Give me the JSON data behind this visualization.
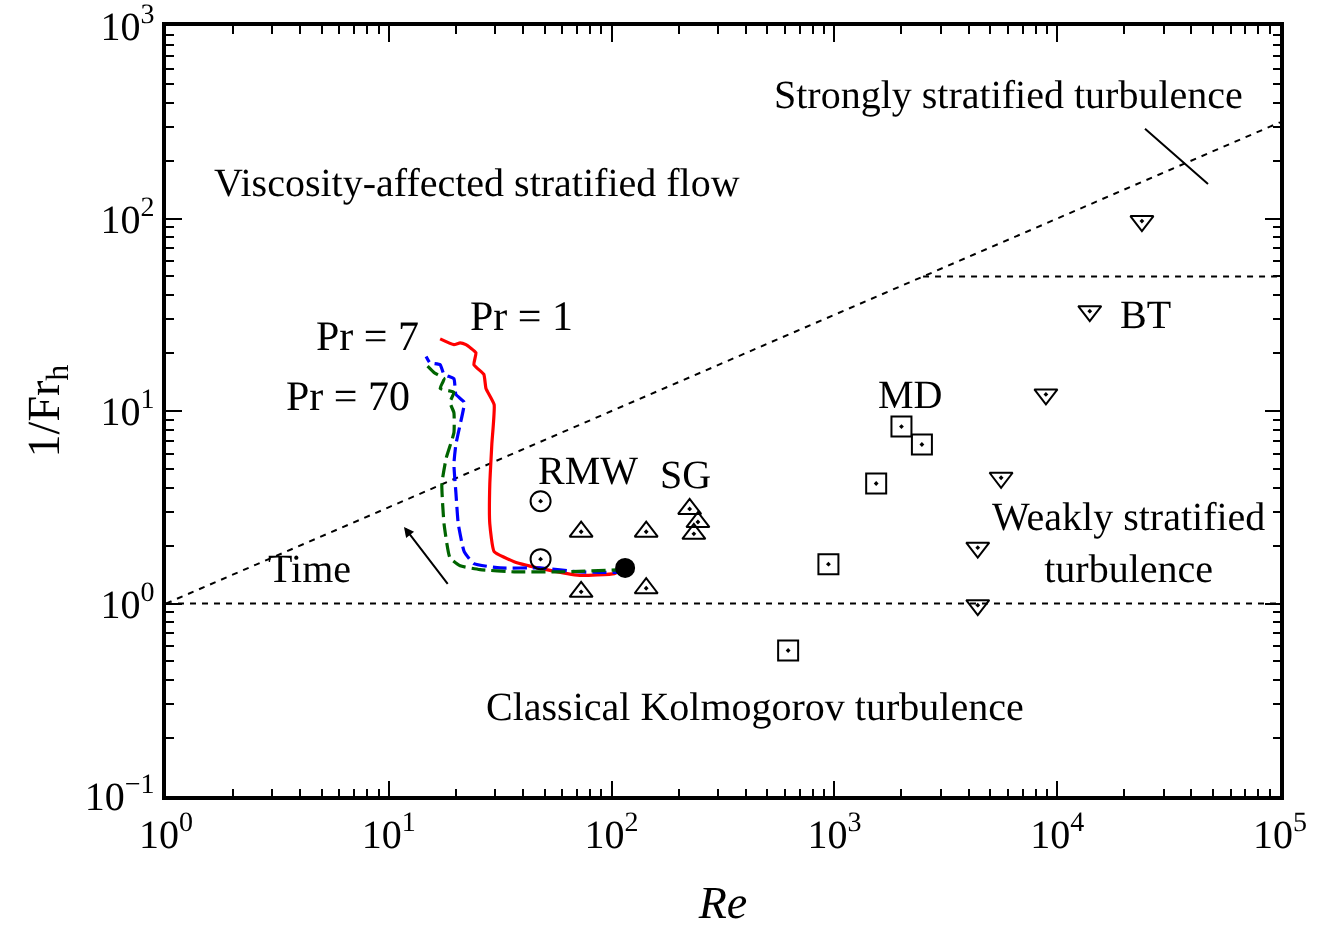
{
  "chart_data": {
    "type": "scatter",
    "xlabel": "Re",
    "ylabel": "1/Fr$_{h}$",
    "log": "xy",
    "xlim": [
      1,
      100000
    ],
    "ylim": [
      0.1,
      1000
    ],
    "xticks": [
      {
        "value": 1,
        "label": "10$^{0}$"
      },
      {
        "value": 10,
        "label": "10$^{1}$"
      },
      {
        "value": 100,
        "label": "10$^{2}$"
      },
      {
        "value": 1000,
        "label": "10$^{3}$"
      },
      {
        "value": 10000,
        "label": "10$^{4}$"
      },
      {
        "value": 100000,
        "label": "10$^{5}$"
      }
    ],
    "yticks": [
      {
        "value": 0.1,
        "label": "10$^{−1}$"
      },
      {
        "value": 1,
        "label": "10$^{0}$"
      },
      {
        "value": 10,
        "label": "10$^{1}$"
      },
      {
        "value": 100,
        "label": "10$^{2}$"
      },
      {
        "value": 1000,
        "label": "10$^{3}$"
      }
    ],
    "series": [
      {
        "type": "line",
        "color": "#000000",
        "line_style": "dotted",
        "marker": "none",
        "x": [
          1,
          100000
        ],
        "values": [
          1,
          316
        ]
      },
      {
        "type": "line",
        "color": "#000000",
        "line_style": "dotted",
        "marker": "none",
        "x": [
          2500,
          100000
        ],
        "values": [
          50,
          50
        ]
      },
      {
        "type": "line",
        "color": "#ff0000",
        "line_style": "solid",
        "marker": "none",
        "x": [
          115,
          103,
          72,
          51,
          36.5,
          29.7,
          28.4,
          28.4,
          29.0,
          29.7,
          27.3,
          26.7,
          24.1,
          24.6,
          22.2,
          20.9,
          19.6,
          17.0
        ],
        "values": [
          1.53,
          1.43,
          1.4,
          1.5,
          1.65,
          1.86,
          2.59,
          4.17,
          6.7,
          10.8,
          13.1,
          15.5,
          17.4,
          20.1,
          22.1,
          22.6,
          22.1,
          23.7
        ]
      },
      {
        "type": "line",
        "color": "#0000ff",
        "line_style": "dashed",
        "marker": "none",
        "x": [
          115,
          109,
          72,
          47.7,
          31.6,
          24.1,
          21.8,
          20.5,
          20.0,
          19.6,
          20.0,
          20.9,
          21.8,
          20.0,
          19.6,
          17.7,
          17.0,
          15.3,
          14.7
        ],
        "values": [
          1.53,
          1.46,
          1.46,
          1.53,
          1.53,
          1.61,
          1.86,
          2.59,
          3.79,
          5.3,
          6.7,
          8.5,
          11.1,
          12.2,
          14.7,
          15.5,
          17.4,
          17.8,
          19.2
        ]
      },
      {
        "type": "line",
        "color": "#006400",
        "line_style": "dashed",
        "marker": "none",
        "x": [
          115,
          109,
          58.7,
          36.5,
          25.7,
          20.9,
          18.8,
          17.7,
          17.3,
          18.1,
          19.6,
          19.6,
          18.8,
          19.6,
          17.0,
          17.7,
          16.0,
          14.7
        ],
        "values": [
          1.53,
          1.5,
          1.46,
          1.46,
          1.5,
          1.57,
          1.73,
          2.59,
          4.17,
          5.7,
          7.7,
          9.8,
          11.1,
          12.5,
          13.1,
          14.7,
          15.8,
          17.4
        ]
      },
      {
        "color": "#000000",
        "marker": "circle",
        "x": [
          115
        ],
        "values": [
          1.53
        ]
      },
      {
        "name": "RMW",
        "color": "#000000",
        "marker": "circle",
        "x": [
          48,
          48
        ],
        "values": [
          3.4,
          1.7
        ]
      },
      {
        "name": "SG",
        "color": "#000000",
        "marker": "triangle",
        "x": [
          73,
          143,
          73,
          143,
          224,
          244,
          234
        ],
        "values": [
          2.36,
          2.36,
          1.15,
          1.2,
          3.1,
          2.65,
          2.3
        ]
      },
      {
        "name": "MD",
        "color": "#000000",
        "marker": "square",
        "x": [
          2000,
          2470,
          1540,
          940,
          620
        ],
        "values": [
          8.3,
          6.7,
          4.2,
          1.6,
          0.57
        ]
      },
      {
        "name": "BT",
        "color": "#000000",
        "marker": "triangle-down",
        "x": [
          24000,
          14000,
          8900,
          5600,
          4400,
          4400
        ],
        "values": [
          97,
          33,
          12.2,
          4.5,
          1.95,
          0.98
        ]
      }
    ],
    "ref_lines": [
      {
        "axis": "y",
        "value": 1,
        "color": "#000000",
        "line_style": "dotted"
      }
    ],
    "annotations": [
      "Viscosity-affected stratified flow",
      "Strongly stratified turbulence",
      "Weakly stratified\nturbulence",
      "Classical Kolmogorov turbulence",
      "Time",
      "Pr = 1",
      "Pr = 7",
      "Pr = 70"
    ]
  }
}
